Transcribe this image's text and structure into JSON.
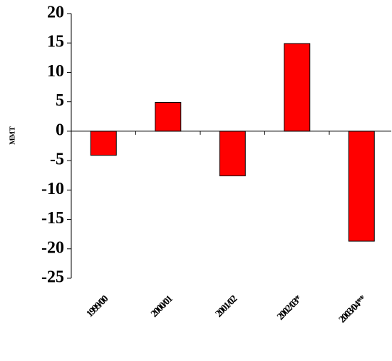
{
  "chart_data": {
    "type": "bar",
    "y_label": "MMT",
    "categories": [
      "1999/00",
      "2000/01",
      "2001/02",
      "2002/03*",
      "2003/04**"
    ],
    "values": [
      -4.1,
      4.9,
      -7.6,
      14.9,
      -18.7
    ],
    "color": "#ff0000",
    "ylim": [
      -25,
      20
    ],
    "yticks": [
      -25,
      -20,
      -15,
      -10,
      -5,
      0,
      5,
      10,
      15,
      20
    ]
  }
}
